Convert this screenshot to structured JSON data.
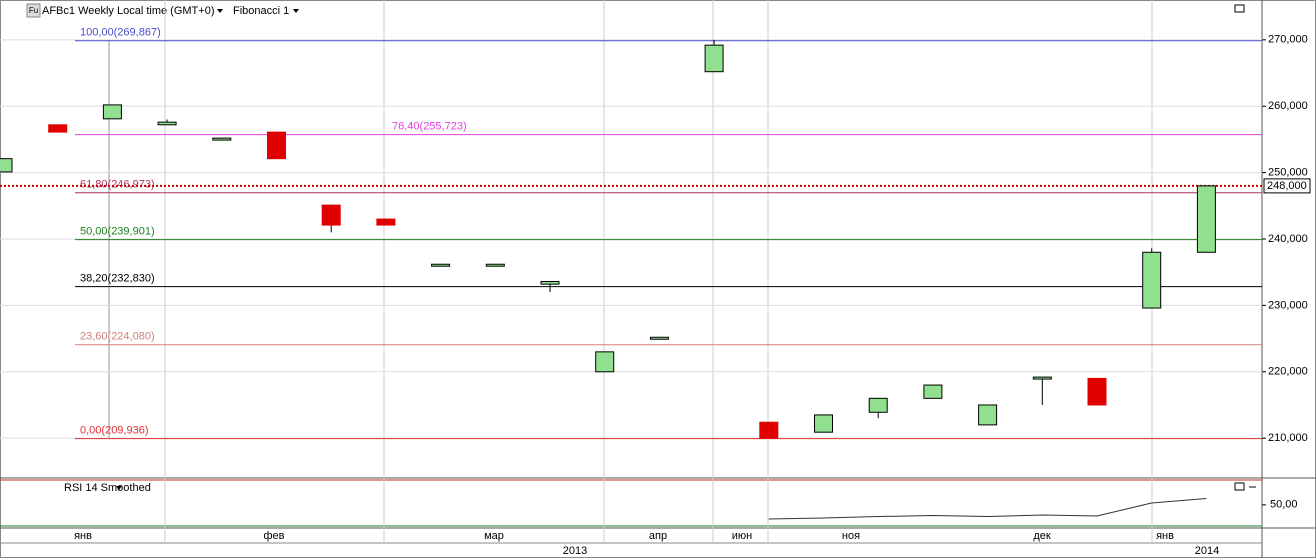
{
  "chart_data": {
    "type": "candlestick",
    "title": "AFBc1 Weekly Local time (GMT+0)",
    "indicator": "Fibonacci 1",
    "icon": "Fu",
    "categories": [
      null,
      null,
      null,
      null,
      null,
      null,
      null,
      null,
      null,
      null,
      null,
      null,
      null,
      null,
      null,
      null,
      null,
      null,
      null,
      null,
      null,
      null,
      null
    ],
    "open": [
      250100,
      257200,
      258100,
      257200,
      254900,
      256100,
      245100,
      243000,
      235900,
      235900,
      233200,
      220000,
      224900,
      265200,
      212400,
      210900,
      213900,
      216000,
      212000,
      218900,
      219000,
      229600,
      238000
    ],
    "high": [
      252100,
      257200,
      260200,
      258000,
      255200,
      256100,
      245100,
      243000,
      236200,
      236200,
      233600,
      223000,
      225200,
      270000,
      212400,
      213500,
      216000,
      218000,
      215000,
      219200,
      219000,
      238600,
      248000
    ],
    "low": [
      250100,
      256100,
      258100,
      257200,
      254900,
      252100,
      241000,
      242100,
      235900,
      235900,
      232000,
      220000,
      224900,
      265200,
      210000,
      210900,
      213000,
      216000,
      212000,
      215000,
      215000,
      229600,
      238000
    ],
    "close": [
      252100,
      256100,
      260200,
      257600,
      255200,
      252100,
      242100,
      242100,
      236200,
      236200,
      233600,
      223000,
      225200,
      269200,
      210000,
      213500,
      216000,
      218000,
      215000,
      219200,
      215000,
      238000,
      248000
    ],
    "up_color": "#90e090",
    "down_color": "#e00000",
    "ylim": [
      204000,
      276000
    ],
    "yticks": [
      {
        "value": 210000,
        "label": "210,000"
      },
      {
        "value": 220000,
        "label": "220,000"
      },
      {
        "value": 230000,
        "label": "230,000"
      },
      {
        "value": 240000,
        "label": "240,000"
      },
      {
        "value": 250000,
        "label": "250,000"
      },
      {
        "value": 260000,
        "label": "260,000"
      },
      {
        "value": 270000,
        "label": "270,000"
      }
    ],
    "fib_levels": [
      {
        "label": "100,00(269,867)",
        "value": 269867,
        "color": "#4a4ad0"
      },
      {
        "label": "76,40(255,723)",
        "value": 255723,
        "color": "#e040e0"
      },
      {
        "label": "61,80(246,973)",
        "value": 246973,
        "color": "#b03060"
      },
      {
        "label": "50,00(239,901)",
        "value": 239901,
        "color": "#208020"
      },
      {
        "label": "38,20(232,830)",
        "value": 232830,
        "color": "#000000"
      },
      {
        "label": "23,60(224,080)",
        "value": 224080,
        "color": "#d08080"
      },
      {
        "label": "0,00(209,936)",
        "value": 209936,
        "color": "#e03030"
      }
    ],
    "current_price": {
      "value": 248000,
      "label": "248,000",
      "color": "#c00000"
    },
    "x_labels": [
      "янв",
      "фев",
      "мар",
      "апр",
      "июн",
      "ноя",
      "дек",
      "янв"
    ],
    "years": [
      "2013",
      "2014"
    ],
    "rsi": {
      "name": "RSI 14 Smoothed",
      "ylim": [
        25,
        78
      ],
      "yticks": [
        {
          "value": 50,
          "label": "50,00"
        }
      ],
      "values": [
        null,
        null,
        null,
        null,
        null,
        null,
        null,
        null,
        null,
        null,
        null,
        null,
        null,
        null,
        34.0,
        35.1,
        36.8,
        38.0,
        36.8,
        38.5,
        37.4,
        52.1,
        57.1
      ]
    }
  }
}
